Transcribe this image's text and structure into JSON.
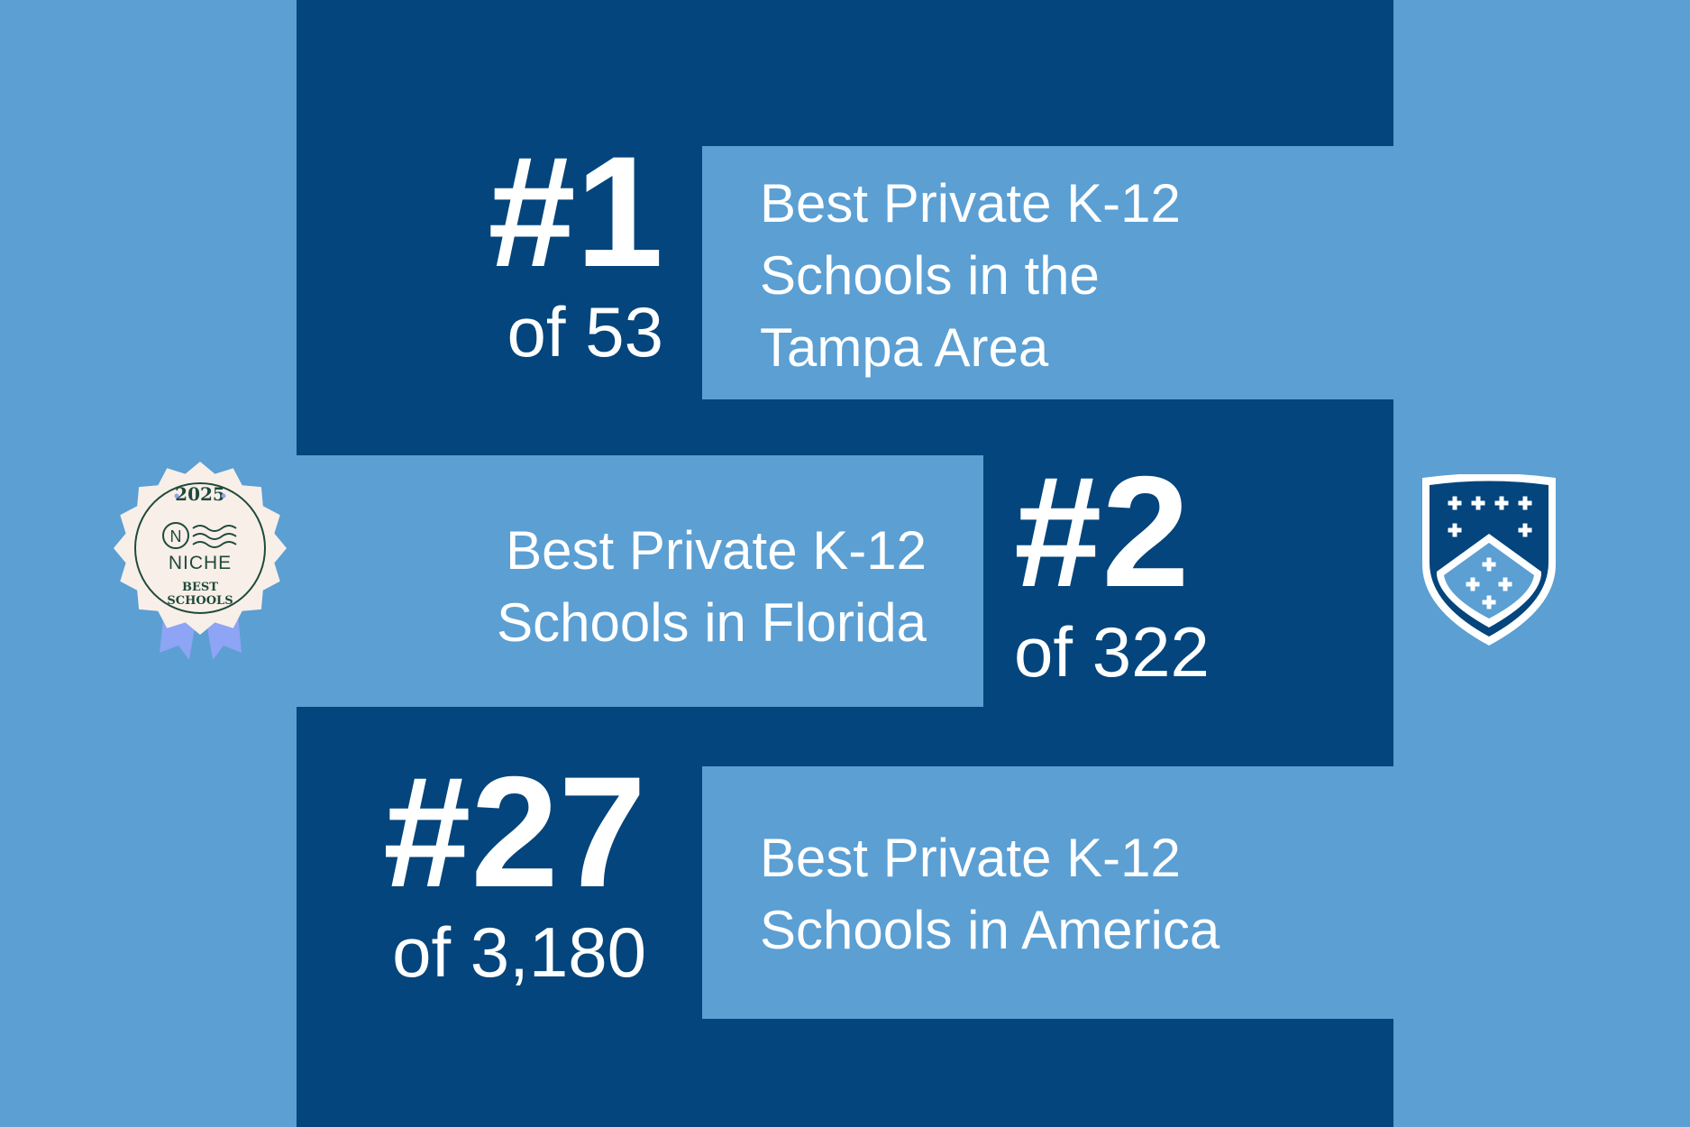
{
  "rankings": [
    {
      "rank": "#1",
      "of": "of 53",
      "line1": "Best Private K-12",
      "line2": "Schools in the",
      "line3": "Tampa Area"
    },
    {
      "rank": "#2",
      "of": "of 322",
      "line1": "Best Private K-12",
      "line2": "Schools in Florida"
    },
    {
      "rank": "#27",
      "of": "of 3,180",
      "line1": "Best Private K-12",
      "line2": "Schools in America"
    }
  ],
  "badge": {
    "year": "2025",
    "brand": "NICHE",
    "line1": "BEST",
    "line2": "SCHOOLS",
    "icon": "niche-badge-icon"
  },
  "crest": {
    "icon": "school-crest-icon"
  },
  "colors": {
    "dark_blue": "#03457c",
    "light_blue": "#5b9fd3",
    "text": "#ffffff"
  }
}
